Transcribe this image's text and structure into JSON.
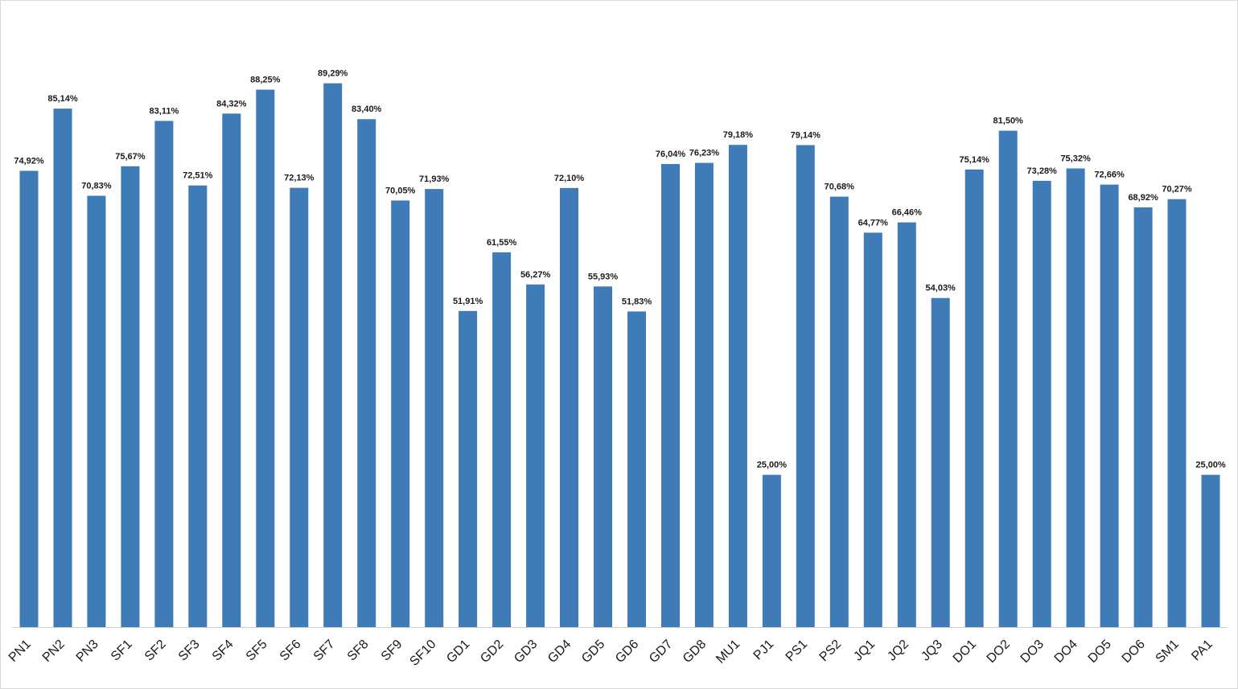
{
  "chart_data": {
    "type": "bar",
    "categories": [
      "PN1",
      "PN2",
      "PN3",
      "SF1",
      "SF2",
      "SF3",
      "SF4",
      "SF5",
      "SF6",
      "SF7",
      "SF8",
      "SF9",
      "SF10",
      "GD1",
      "GD2",
      "GD3",
      "GD4",
      "GD5",
      "GD6",
      "GD7",
      "GD8",
      "MU1",
      "PJ1",
      "PS1",
      "PS2",
      "JQ1",
      "JQ2",
      "JQ3",
      "DO1",
      "DO2",
      "DO3",
      "DO4",
      "DO5",
      "DO6",
      "SM1",
      "PA1"
    ],
    "values": [
      74.92,
      85.14,
      70.83,
      75.67,
      83.11,
      72.51,
      84.32,
      88.25,
      72.13,
      89.29,
      83.4,
      70.05,
      71.93,
      51.91,
      61.55,
      56.27,
      72.1,
      55.93,
      51.83,
      76.04,
      76.23,
      79.18,
      25.0,
      79.14,
      70.68,
      64.77,
      66.46,
      54.03,
      75.14,
      81.5,
      73.28,
      75.32,
      72.66,
      68.92,
      70.27,
      25.0
    ],
    "data_labels": [
      "74,92%",
      "85,14%",
      "70,83%",
      "75,67%",
      "83,11%",
      "72,51%",
      "84,32%",
      "88,25%",
      "72,13%",
      "89,29%",
      "83,40%",
      "70,05%",
      "71,93%",
      "51,91%",
      "61,55%",
      "56,27%",
      "72,10%",
      "55,93%",
      "51,83%",
      "76,04%",
      "76,23%",
      "79,18%",
      "25,00%",
      "79,14%",
      "70,68%",
      "64,77%",
      "66,46%",
      "54,03%",
      "75,14%",
      "81,50%",
      "73,28%",
      "75,32%",
      "72,66%",
      "68,92%",
      "70,27%",
      "25,00%"
    ],
    "title": "",
    "xlabel": "",
    "ylabel": "",
    "ylim": [
      0,
      100
    ],
    "grid": false,
    "legend": "none",
    "bar_color": "#3f7cb7"
  }
}
